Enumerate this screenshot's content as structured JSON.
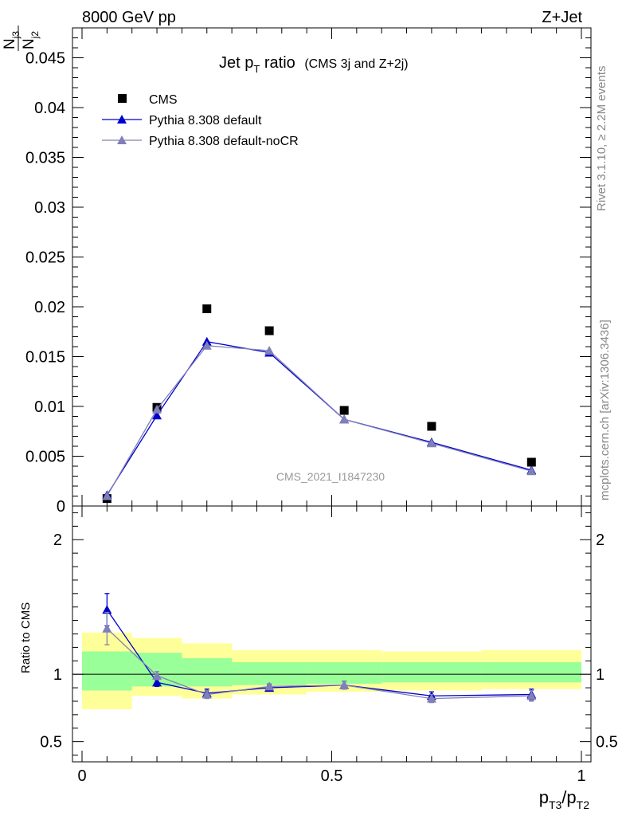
{
  "header": {
    "left": "8000 GeV pp",
    "right": "Z+Jet"
  },
  "side": {
    "rivet": "Rivet 3.1.10, ≥ 2.2M events",
    "mcplots": "mcplots.cern.ch [arXiv:1306.3436]"
  },
  "colors": {
    "cms": "#000000",
    "default": "#0000cc",
    "nocr": "#8080b8",
    "band_yellow": "#ffff99",
    "band_green": "#99ff99"
  },
  "chart_data": [
    {
      "type": "scatter",
      "title": {
        "main": "Jet p",
        "sub": "T",
        "rest": " ratio",
        "note": "(CMS 3j and Z+2j)"
      },
      "ylabel": {
        "num": "N",
        "num_sub": "j3",
        "den": "N",
        "den_sub": "j2"
      },
      "watermark": "CMS_2021_I1847230",
      "xlim": [
        0,
        1
      ],
      "ylim": [
        0,
        0.048
      ],
      "yticks": [
        {
          "v": 0,
          "label": "0"
        },
        {
          "v": 0.005,
          "label": "0.005"
        },
        {
          "v": 0.01,
          "label": "0.01"
        },
        {
          "v": 0.015,
          "label": "0.015"
        },
        {
          "v": 0.02,
          "label": "0.02"
        },
        {
          "v": 0.025,
          "label": "0.025"
        },
        {
          "v": 0.03,
          "label": "0.03"
        },
        {
          "v": 0.035,
          "label": "0.035"
        },
        {
          "v": 0.04,
          "label": "0.04"
        },
        {
          "v": 0.045,
          "label": "0.045"
        }
      ],
      "legend": [
        "CMS",
        "Pythia 8.308 default",
        "Pythia 8.308 default-noCR"
      ],
      "legend_position": "top-left",
      "x": [
        0.05,
        0.15,
        0.25,
        0.375,
        0.525,
        0.7,
        0.9
      ],
      "series": [
        {
          "name": "CMS",
          "marker": "square",
          "values": [
            0.00075,
            0.0099,
            0.0198,
            0.0176,
            0.0096,
            0.008,
            0.0044
          ]
        },
        {
          "name": "Pythia 8.308 default",
          "marker": "triangle",
          "values": [
            0.0011,
            0.0091,
            0.0165,
            0.0154,
            0.0087,
            0.0064,
            0.0036
          ]
        },
        {
          "name": "Pythia 8.308 default-noCR",
          "marker": "triangle",
          "values": [
            0.001,
            0.0097,
            0.0161,
            0.0156,
            0.0087,
            0.0063,
            0.0035
          ]
        }
      ]
    },
    {
      "type": "scatter",
      "ylabel": "Ratio to CMS",
      "xlabel": {
        "p1": "p",
        "s1": "T3",
        "slash": "/",
        "p2": "p",
        "s2": "T2"
      },
      "xlim": [
        0,
        1
      ],
      "ylim": [
        0.35,
        2.25
      ],
      "xticks": [
        {
          "v": 0,
          "label": "0"
        },
        {
          "v": 0.5,
          "label": "0.5"
        },
        {
          "v": 1,
          "label": "1"
        }
      ],
      "yticks": [
        {
          "v": 0.5,
          "label": "0.5"
        },
        {
          "v": 1,
          "label": "1"
        },
        {
          "v": 2,
          "label": "2"
        }
      ],
      "bands": [
        {
          "x0": 0.0,
          "x1": 0.1,
          "y_lo": 0.74,
          "y_hi": 1.31,
          "g_lo": 0.88,
          "g_hi": 1.17
        },
        {
          "x0": 0.1,
          "x1": 0.2,
          "y_lo": 0.84,
          "y_hi": 1.27,
          "g_lo": 0.91,
          "g_hi": 1.16
        },
        {
          "x0": 0.2,
          "x1": 0.3,
          "y_lo": 0.82,
          "y_hi": 1.23,
          "g_lo": 0.91,
          "g_hi": 1.12
        },
        {
          "x0": 0.3,
          "x1": 0.45,
          "y_lo": 0.85,
          "y_hi": 1.18,
          "g_lo": 0.92,
          "g_hi": 1.09
        },
        {
          "x0": 0.45,
          "x1": 0.6,
          "y_lo": 0.87,
          "y_hi": 1.18,
          "g_lo": 0.93,
          "g_hi": 1.09
        },
        {
          "x0": 0.6,
          "x1": 0.8,
          "y_lo": 0.88,
          "y_hi": 1.17,
          "g_lo": 0.94,
          "g_hi": 1.09
        },
        {
          "x0": 0.8,
          "x1": 1.0,
          "y_lo": 0.89,
          "y_hi": 1.18,
          "g_lo": 0.94,
          "g_hi": 1.09
        }
      ],
      "x": [
        0.05,
        0.15,
        0.25,
        0.375,
        0.525,
        0.7,
        0.9
      ],
      "series": [
        {
          "name": "Pythia 8.308 default",
          "values": [
            1.48,
            0.94,
            0.86,
            0.9,
            0.92,
            0.84,
            0.85
          ],
          "err": [
            0.12,
            0.03,
            0.03,
            0.02,
            0.03,
            0.03,
            0.04
          ]
        },
        {
          "name": "Pythia 8.308 default-noCR",
          "values": [
            1.34,
            0.99,
            0.85,
            0.91,
            0.92,
            0.82,
            0.84
          ],
          "err": [
            0.12,
            0.03,
            0.03,
            0.02,
            0.03,
            0.03,
            0.04
          ]
        }
      ]
    }
  ]
}
